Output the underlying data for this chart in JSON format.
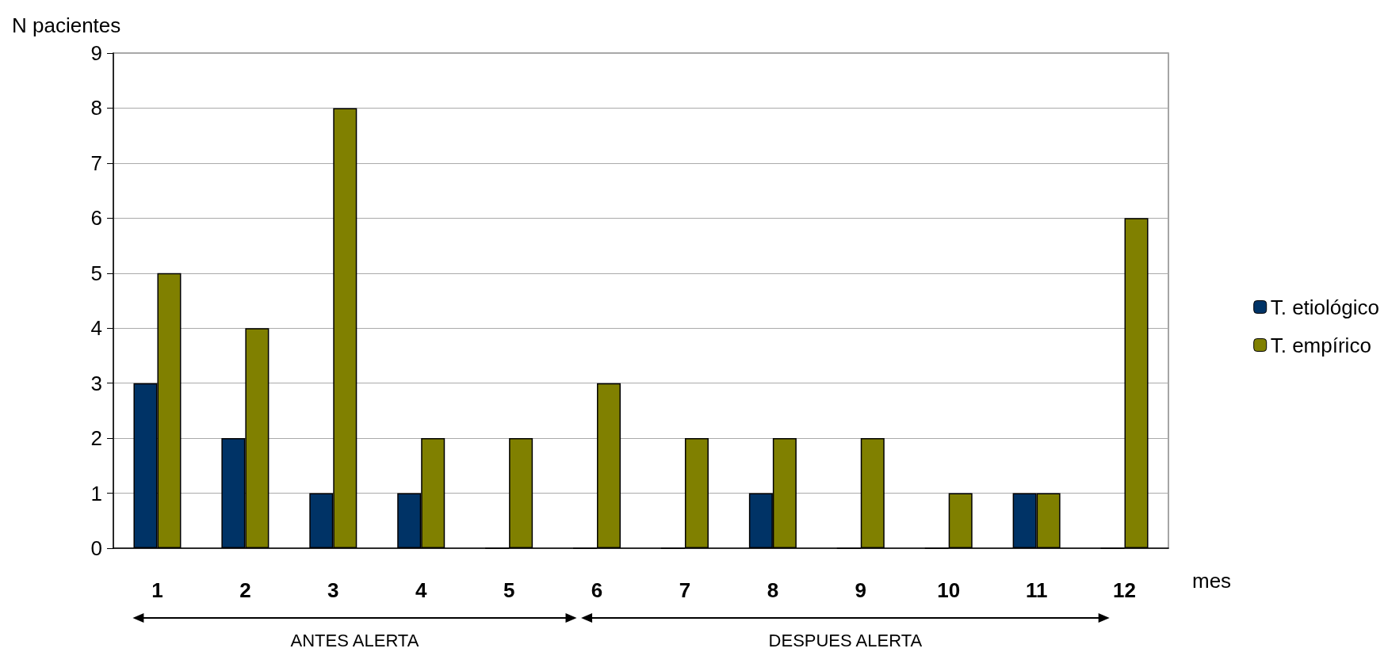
{
  "chart_data": {
    "type": "bar",
    "ylabel": "N pacientes",
    "xlabel": "mes",
    "categories": [
      "1",
      "2",
      "3",
      "4",
      "5",
      "6",
      "7",
      "8",
      "9",
      "10",
      "11",
      "12"
    ],
    "series": [
      {
        "name": "T. etiológico",
        "color": "#003366",
        "values": [
          3,
          2,
          1,
          1,
          0,
          0,
          0,
          1,
          0,
          0,
          1,
          0
        ]
      },
      {
        "name": "T. empírico",
        "color": "#808000",
        "values": [
          5,
          4,
          8,
          2,
          2,
          3,
          2,
          2,
          2,
          1,
          1,
          6
        ]
      }
    ],
    "ylim": [
      0,
      9
    ],
    "yticks": [
      0,
      1,
      2,
      3,
      4,
      5,
      6,
      7,
      8,
      9
    ],
    "grid": "y",
    "legend": "right",
    "annotations": [
      "ANTES ALERTA",
      "DESPUES ALERTA"
    ]
  }
}
